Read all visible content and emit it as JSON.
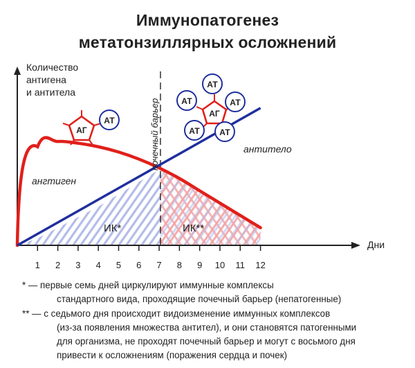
{
  "title": {
    "line1": "Иммунопатогенез",
    "line2": "метатонзиллярных осложнений"
  },
  "axes": {
    "y_label": [
      "Количество",
      "антигена",
      "и антитела"
    ],
    "x_label": "Дни",
    "x_ticks": [
      "1",
      "2",
      "3",
      "4",
      "5",
      "6",
      "7",
      "8",
      "9",
      "10",
      "11",
      "12"
    ]
  },
  "labels": {
    "barrier": "почечный барьер",
    "antibody": "антитело",
    "antigen": "ангтиген",
    "ik1": "ИК*",
    "ik2": "ИК**",
    "ag": "АГ",
    "at": "АТ"
  },
  "colors": {
    "antigen": "#e0201b",
    "antibody": "#1f2f9e",
    "hatch_blue": "#aab4e6",
    "hatch_red": "#f2a3a3"
  },
  "chart_data": {
    "type": "line",
    "x": [
      0,
      1,
      2,
      3,
      4,
      5,
      6,
      7,
      8,
      9,
      10,
      11,
      12
    ],
    "series": [
      {
        "name": "ангтиген",
        "values": [
          0.0,
          0.56,
          0.59,
          0.58,
          0.56,
          0.53,
          0.49,
          0.44,
          0.38,
          0.31,
          0.24,
          0.17,
          0.1
        ]
      },
      {
        "name": "антитело",
        "values": [
          0.0,
          0.04,
          0.1,
          0.16,
          0.22,
          0.29,
          0.36,
          0.43,
          0.5,
          0.57,
          0.64,
          0.71,
          0.78
        ]
      }
    ],
    "xlim": [
      0,
      13
    ],
    "ylim": [
      0,
      1
    ]
  },
  "notes": [
    "* — первые семь дней циркулируют иммунные комплексы",
    "стандартного вида, проходящие почечный барьер (непатогенные)",
    "** — с седьмого дня происходит видоизменение иммунных комплексов",
    "(из-за появления множества антител), и они становятся патогенными",
    "для организма, не проходят почечный барьер и могут с восьмого дня",
    "привести к осложнениям (поражения сердца и почек)"
  ]
}
